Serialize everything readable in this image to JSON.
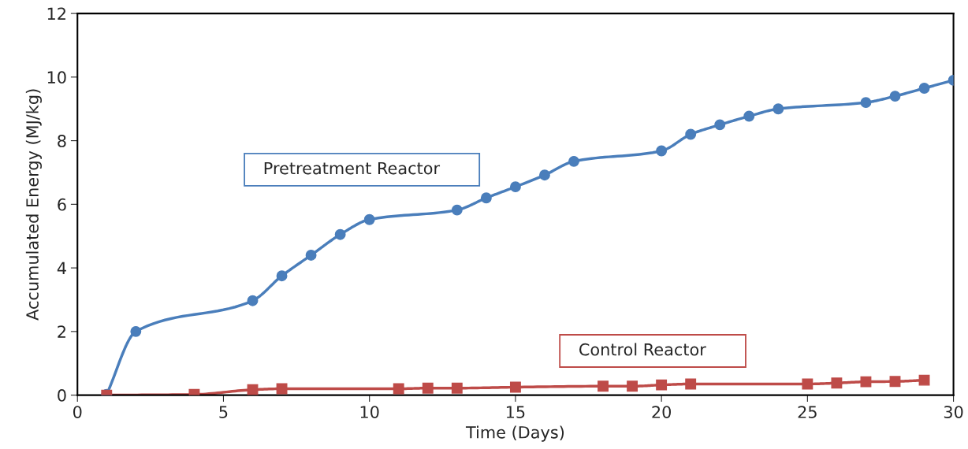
{
  "chart_data": {
    "type": "line",
    "xlabel": "Time (Days)",
    "ylabel": "Accumulated Energy (MJ/kg)",
    "xlim": [
      0,
      30
    ],
    "xticks": [
      0,
      5,
      10,
      15,
      20,
      25,
      30
    ],
    "ylim": [
      0,
      12
    ],
    "yticks": [
      0,
      2,
      4,
      6,
      8,
      10,
      12
    ],
    "grid": false,
    "legend": false,
    "series": [
      {
        "name": "Pretreatment Reactor",
        "color": "#4a7ebb",
        "marker": "circle",
        "x": [
          1,
          2,
          6,
          7,
          8,
          9,
          10,
          13,
          14,
          15,
          16,
          17,
          20,
          21,
          22,
          23,
          24,
          27,
          28,
          29,
          30
        ],
        "values": [
          0.02,
          2.0,
          2.97,
          3.75,
          4.4,
          5.05,
          5.52,
          5.82,
          6.2,
          6.55,
          6.92,
          7.35,
          7.68,
          8.2,
          8.5,
          8.77,
          9.0,
          9.2,
          9.4,
          9.65,
          9.9
        ]
      },
      {
        "name": "Control Reactor",
        "color": "#be4b48",
        "marker": "square",
        "x": [
          1,
          4,
          6,
          7,
          11,
          12,
          13,
          15,
          18,
          19,
          20,
          21,
          25,
          26,
          27,
          28,
          29
        ],
        "values": [
          0.0,
          0.02,
          0.17,
          0.2,
          0.2,
          0.22,
          0.22,
          0.25,
          0.28,
          0.28,
          0.32,
          0.35,
          0.35,
          0.38,
          0.42,
          0.43,
          0.47
        ]
      }
    ]
  }
}
